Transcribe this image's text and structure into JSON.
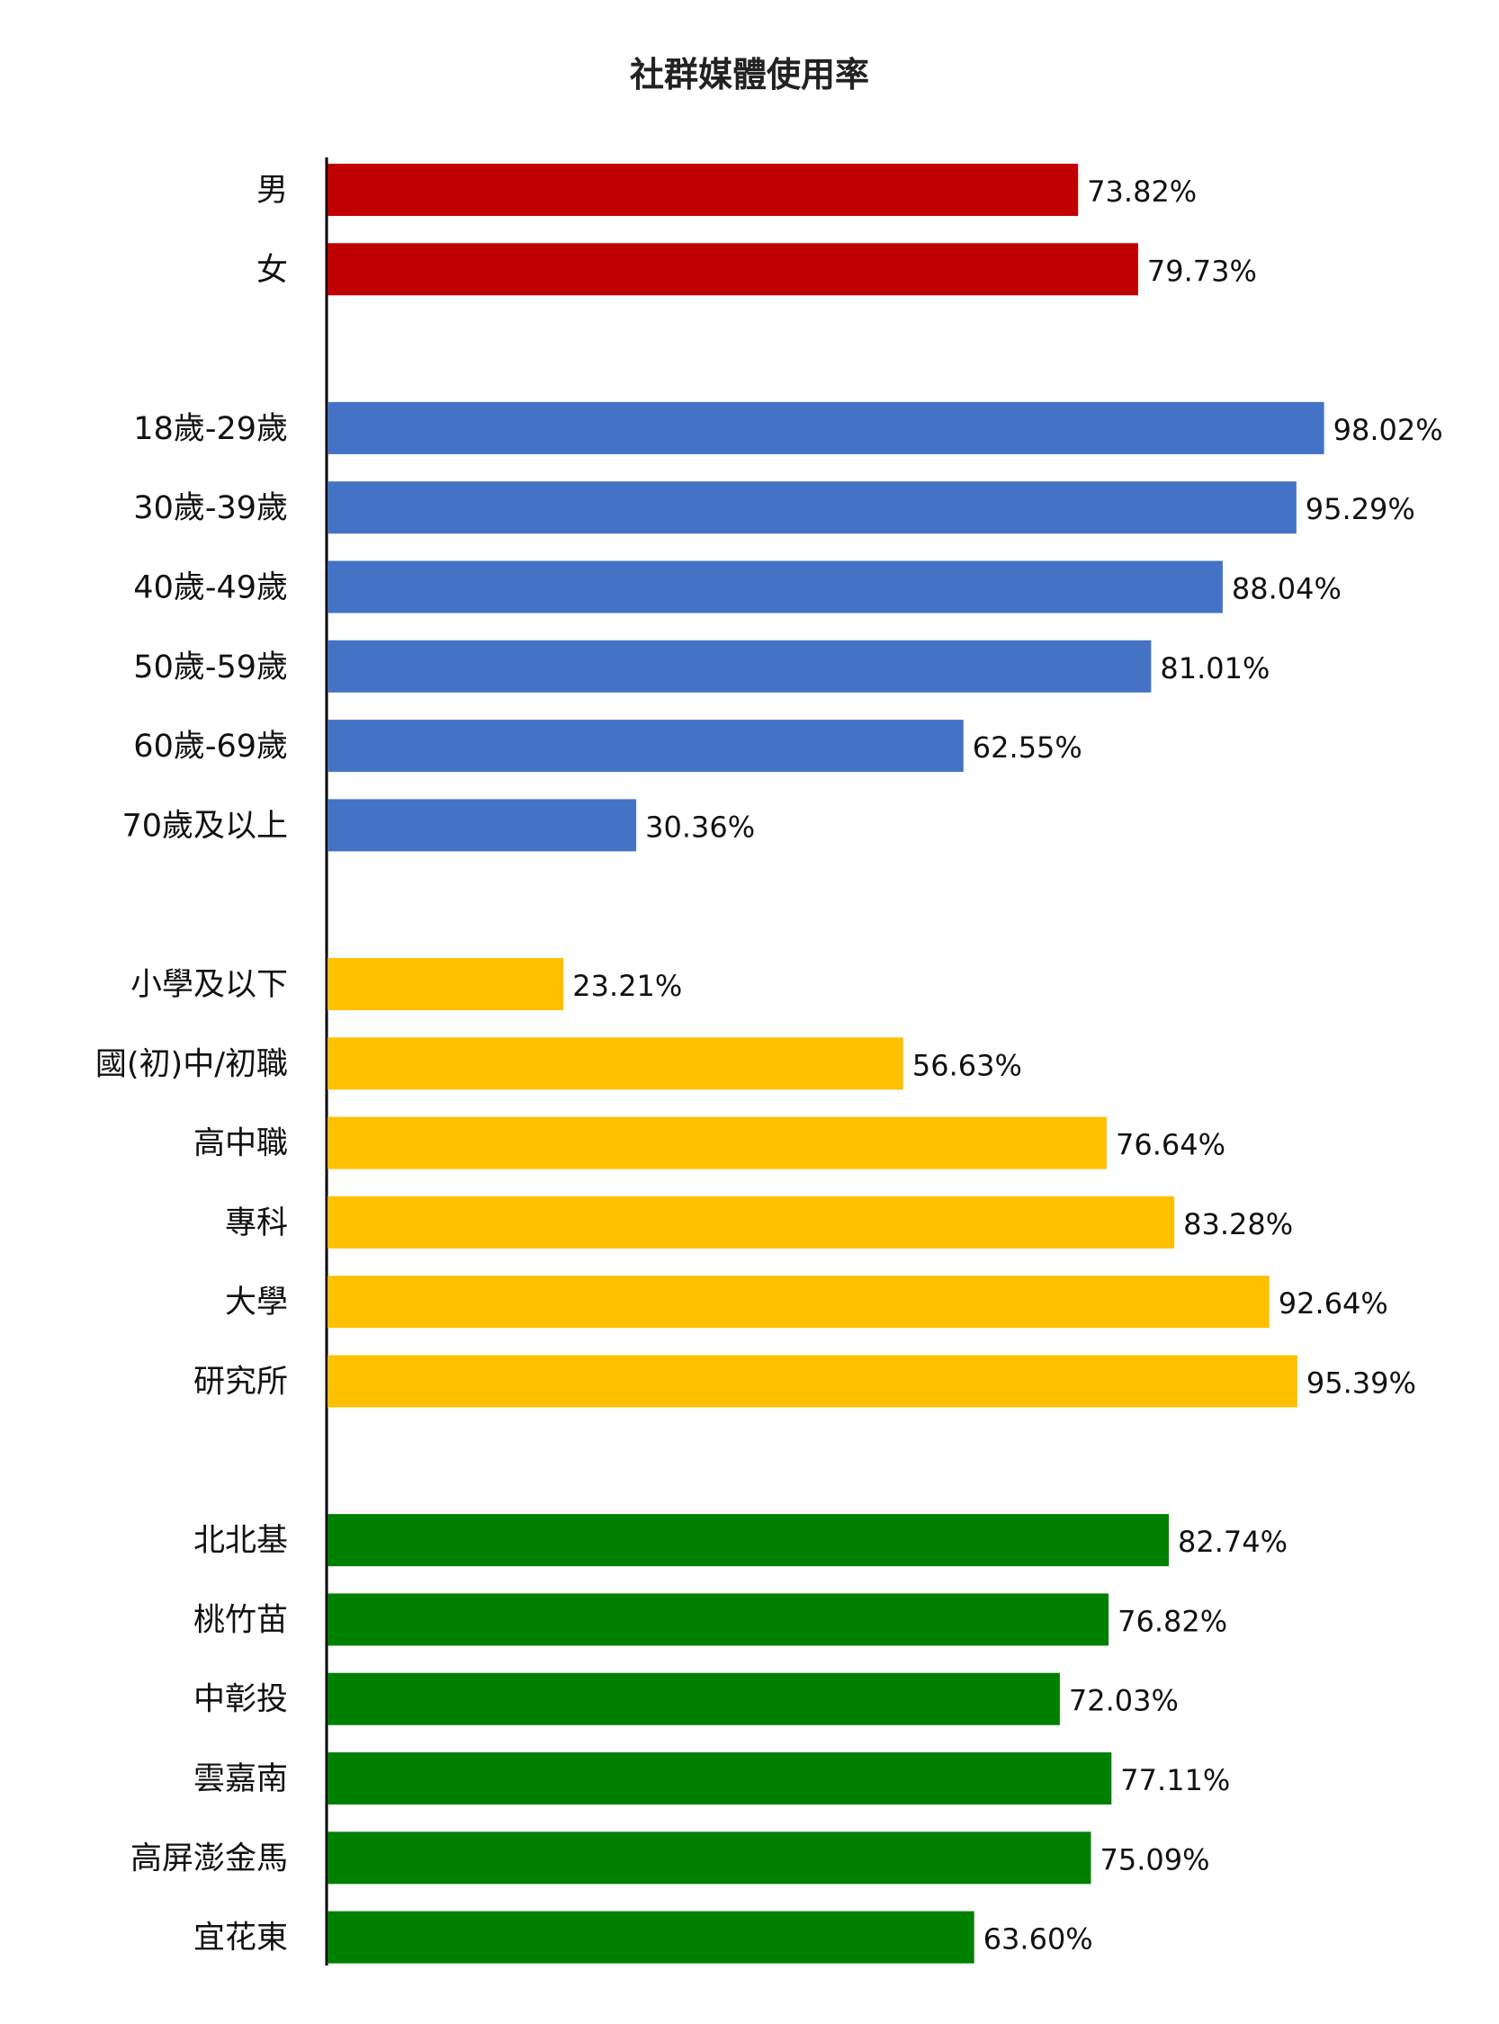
{
  "chart_data": {
    "type": "bar",
    "orientation": "horizontal",
    "title": "社群媒體使用率",
    "xlim": [
      0,
      100
    ],
    "grid": false,
    "legend": "none",
    "groups": [
      {
        "color": "#C00000",
        "items": [
          {
            "label": "男",
            "value": 73.82,
            "value_label": "73.82%"
          },
          {
            "label": "女",
            "value": 79.73,
            "value_label": "79.73%"
          }
        ]
      },
      {
        "color": "#4472C4",
        "items": [
          {
            "label": "18歲-29歲",
            "value": 98.02,
            "value_label": "98.02%"
          },
          {
            "label": "30歲-39歲",
            "value": 95.29,
            "value_label": "95.29%"
          },
          {
            "label": "40歲-49歲",
            "value": 88.04,
            "value_label": "88.04%"
          },
          {
            "label": "50歲-59歲",
            "value": 81.01,
            "value_label": "81.01%"
          },
          {
            "label": "60歲-69歲",
            "value": 62.55,
            "value_label": "62.55%"
          },
          {
            "label": "70歲及以上",
            "value": 30.36,
            "value_label": "30.36%"
          }
        ]
      },
      {
        "color": "#FFC000",
        "items": [
          {
            "label": "小學及以下",
            "value": 23.21,
            "value_label": "23.21%"
          },
          {
            "label": "國(初)中/初職",
            "value": 56.63,
            "value_label": "56.63%"
          },
          {
            "label": "高中職",
            "value": 76.64,
            "value_label": "76.64%"
          },
          {
            "label": "專科",
            "value": 83.28,
            "value_label": "83.28%"
          },
          {
            "label": "大學",
            "value": 92.64,
            "value_label": "92.64%"
          },
          {
            "label": "研究所",
            "value": 95.39,
            "value_label": "95.39%"
          }
        ]
      },
      {
        "color": "#008000",
        "items": [
          {
            "label": "北北基",
            "value": 82.74,
            "value_label": "82.74%"
          },
          {
            "label": "桃竹苗",
            "value": 76.82,
            "value_label": "76.82%"
          },
          {
            "label": "中彰投",
            "value": 72.03,
            "value_label": "72.03%"
          },
          {
            "label": "雲嘉南",
            "value": 77.11,
            "value_label": "77.11%"
          },
          {
            "label": "高屏澎金馬",
            "value": 75.09,
            "value_label": "75.09%"
          },
          {
            "label": "宜花東",
            "value": 63.6,
            "value_label": "63.60%"
          }
        ]
      }
    ]
  }
}
